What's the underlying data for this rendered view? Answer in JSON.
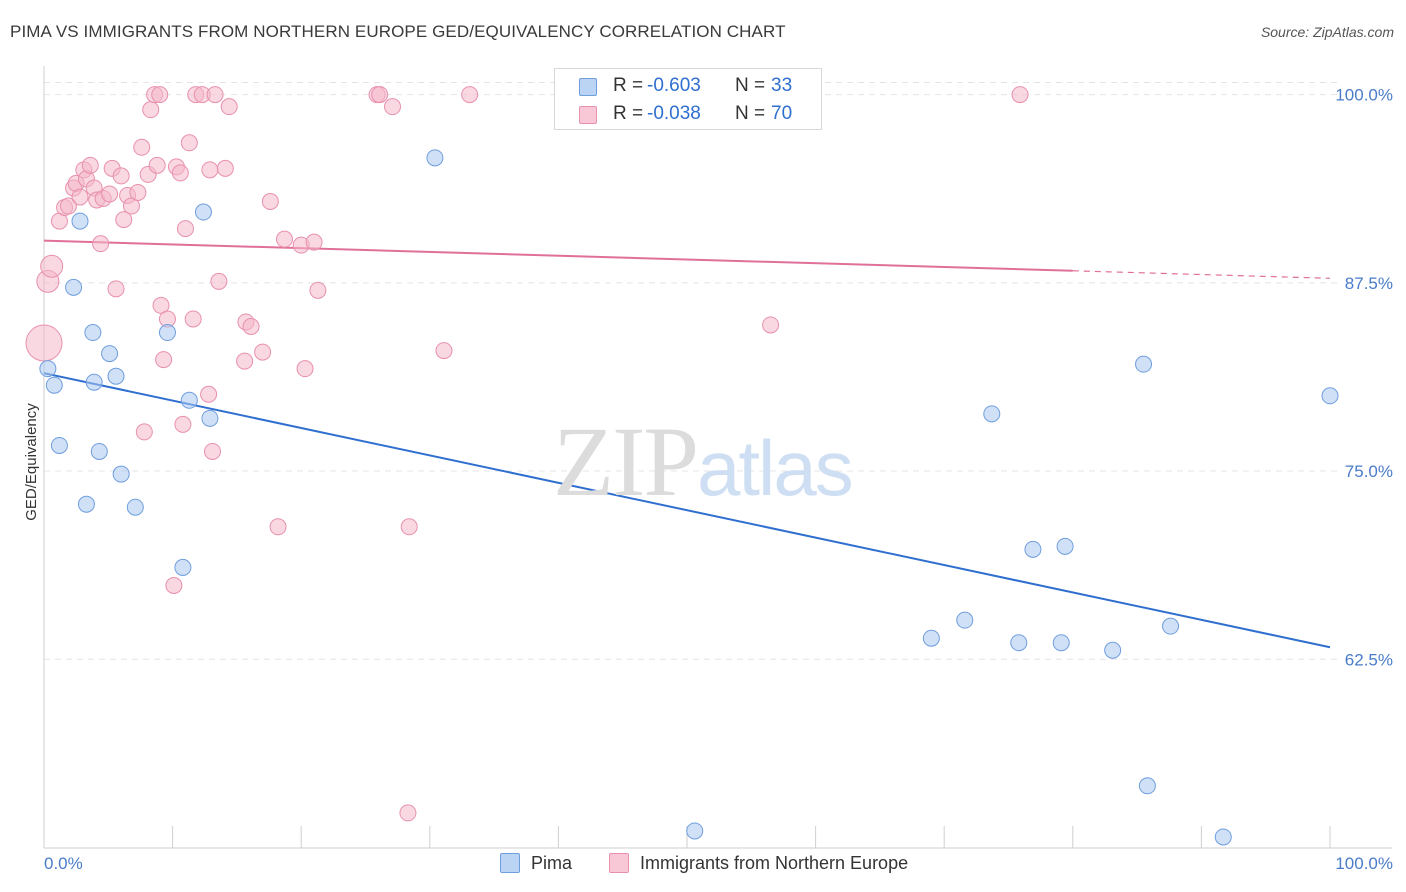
{
  "header": {
    "title": "PIMA VS IMMIGRANTS FROM NORTHERN EUROPE GED/EQUIVALENCY CORRELATION CHART",
    "source": "Source: ZipAtlas.com"
  },
  "watermark": {
    "part1": "ZIP",
    "part2": "atlas"
  },
  "colors": {
    "pima_fill": "#a9c7f0",
    "pima_stroke": "#6f9ede",
    "pima_line": "#2f6fcf",
    "ne_fill": "#f4b8cb",
    "ne_stroke": "#e890ad",
    "ne_line": "#e07099",
    "tick_text": "#4a7cc9",
    "grid": "#e4e4e4"
  },
  "legend_top": [
    {
      "r_label": "R =",
      "r_value": "-0.603",
      "n_label": "N =",
      "n_value": "33"
    },
    {
      "r_label": "R =",
      "r_value": "-0.038",
      "n_label": "N =",
      "n_value": "70"
    }
  ],
  "legend_bottom": [
    {
      "label": "Pima"
    },
    {
      "label": "Immigrants from Northern Europe"
    }
  ],
  "chart_data": {
    "type": "scatter",
    "title": "PIMA VS IMMIGRANTS FROM NORTHERN EUROPE GED/EQUIVALENCY CORRELATION CHART",
    "xlabel": "",
    "ylabel": "GED/Equivalency",
    "xlim": [
      0,
      100
    ],
    "ylim": [
      50.5,
      101.5
    ],
    "x_tick_labels": [
      "0.0%",
      "100.0%"
    ],
    "y_ticks": [
      100.0,
      87.5,
      75.0,
      62.5
    ],
    "y_tick_labels": [
      "100.0%",
      "87.5%",
      "75.0%",
      "62.5%"
    ],
    "grid": true,
    "legend_position": "top-center",
    "series": [
      {
        "name": "Pima",
        "r": -0.603,
        "n": 33,
        "trend": {
          "x": [
            0,
            100
          ],
          "y": [
            81.5,
            63.3
          ]
        },
        "points": [
          {
            "x": 0.3,
            "y": 81.8
          },
          {
            "x": 0.8,
            "y": 80.7
          },
          {
            "x": 1.2,
            "y": 76.7
          },
          {
            "x": 2.3,
            "y": 87.2
          },
          {
            "x": 2.8,
            "y": 91.6
          },
          {
            "x": 3.3,
            "y": 72.8
          },
          {
            "x": 3.8,
            "y": 84.2
          },
          {
            "x": 3.9,
            "y": 80.9
          },
          {
            "x": 4.3,
            "y": 76.3
          },
          {
            "x": 5.1,
            "y": 82.8
          },
          {
            "x": 5.6,
            "y": 81.3
          },
          {
            "x": 6.0,
            "y": 74.8
          },
          {
            "x": 7.1,
            "y": 72.6
          },
          {
            "x": 9.6,
            "y": 84.2
          },
          {
            "x": 10.8,
            "y": 68.6
          },
          {
            "x": 11.3,
            "y": 79.7
          },
          {
            "x": 12.4,
            "y": 92.2
          },
          {
            "x": 12.9,
            "y": 78.5
          },
          {
            "x": 30.4,
            "y": 95.8
          },
          {
            "x": 50.6,
            "y": 51.1
          },
          {
            "x": 69.0,
            "y": 63.9
          },
          {
            "x": 71.6,
            "y": 65.1
          },
          {
            "x": 73.7,
            "y": 78.8
          },
          {
            "x": 75.8,
            "y": 63.6
          },
          {
            "x": 76.9,
            "y": 69.8
          },
          {
            "x": 79.1,
            "y": 63.6
          },
          {
            "x": 79.4,
            "y": 70.0
          },
          {
            "x": 83.1,
            "y": 63.1
          },
          {
            "x": 85.5,
            "y": 82.1
          },
          {
            "x": 85.8,
            "y": 54.1
          },
          {
            "x": 87.6,
            "y": 64.7
          },
          {
            "x": 91.7,
            "y": 50.7
          },
          {
            "x": 100.0,
            "y": 80.0
          }
        ]
      },
      {
        "name": "Immigrants from Northern Europe",
        "r": -0.038,
        "n": 70,
        "trend": {
          "x": [
            0,
            80.0,
            100
          ],
          "y": [
            90.3,
            88.3,
            87.8
          ],
          "solid_until_x": 80.0
        },
        "points": [
          {
            "x": 0.0,
            "y": 83.5
          },
          {
            "x": 0.3,
            "y": 87.6
          },
          {
            "x": 0.6,
            "y": 88.6
          },
          {
            "x": 1.2,
            "y": 91.6
          },
          {
            "x": 1.6,
            "y": 92.5
          },
          {
            "x": 1.9,
            "y": 92.6
          },
          {
            "x": 2.3,
            "y": 93.8
          },
          {
            "x": 2.5,
            "y": 94.1
          },
          {
            "x": 2.8,
            "y": 93.2
          },
          {
            "x": 3.1,
            "y": 95.0
          },
          {
            "x": 3.3,
            "y": 94.4
          },
          {
            "x": 3.6,
            "y": 95.3
          },
          {
            "x": 3.9,
            "y": 93.8
          },
          {
            "x": 4.1,
            "y": 93.0
          },
          {
            "x": 4.4,
            "y": 90.1
          },
          {
            "x": 4.6,
            "y": 93.1
          },
          {
            "x": 5.1,
            "y": 93.4
          },
          {
            "x": 5.3,
            "y": 95.1
          },
          {
            "x": 5.6,
            "y": 87.1
          },
          {
            "x": 6.0,
            "y": 94.6
          },
          {
            "x": 6.2,
            "y": 91.7
          },
          {
            "x": 6.5,
            "y": 93.3
          },
          {
            "x": 6.8,
            "y": 92.6
          },
          {
            "x": 7.3,
            "y": 93.5
          },
          {
            "x": 7.6,
            "y": 96.5
          },
          {
            "x": 7.8,
            "y": 77.6
          },
          {
            "x": 8.1,
            "y": 94.7
          },
          {
            "x": 8.3,
            "y": 99.0
          },
          {
            "x": 8.8,
            "y": 95.3
          },
          {
            "x": 8.6,
            "y": 100.0
          },
          {
            "x": 9.0,
            "y": 100.0
          },
          {
            "x": 9.1,
            "y": 86.0
          },
          {
            "x": 9.3,
            "y": 82.4
          },
          {
            "x": 9.6,
            "y": 85.1
          },
          {
            "x": 10.1,
            "y": 67.4
          },
          {
            "x": 10.3,
            "y": 95.2
          },
          {
            "x": 10.6,
            "y": 94.8
          },
          {
            "x": 10.8,
            "y": 78.1
          },
          {
            "x": 11.0,
            "y": 91.1
          },
          {
            "x": 11.3,
            "y": 96.8
          },
          {
            "x": 11.6,
            "y": 85.1
          },
          {
            "x": 11.8,
            "y": 100.0
          },
          {
            "x": 12.3,
            "y": 100.0
          },
          {
            "x": 12.9,
            "y": 95.0
          },
          {
            "x": 12.8,
            "y": 80.1
          },
          {
            "x": 13.1,
            "y": 76.3
          },
          {
            "x": 13.3,
            "y": 100.0
          },
          {
            "x": 13.6,
            "y": 87.6
          },
          {
            "x": 14.1,
            "y": 95.1
          },
          {
            "x": 14.4,
            "y": 99.2
          },
          {
            "x": 15.7,
            "y": 84.9
          },
          {
            "x": 15.6,
            "y": 82.3
          },
          {
            "x": 16.1,
            "y": 84.6
          },
          {
            "x": 17.0,
            "y": 82.9
          },
          {
            "x": 17.6,
            "y": 92.9
          },
          {
            "x": 18.2,
            "y": 71.3
          },
          {
            "x": 18.7,
            "y": 90.4
          },
          {
            "x": 20.0,
            "y": 90.0
          },
          {
            "x": 20.3,
            "y": 81.8
          },
          {
            "x": 21.0,
            "y": 90.2
          },
          {
            "x": 21.3,
            "y": 87.0
          },
          {
            "x": 25.9,
            "y": 100.0
          },
          {
            "x": 26.1,
            "y": 100.0
          },
          {
            "x": 27.1,
            "y": 99.2
          },
          {
            "x": 28.4,
            "y": 71.3
          },
          {
            "x": 28.3,
            "y": 52.3
          },
          {
            "x": 31.1,
            "y": 83.0
          },
          {
            "x": 33.1,
            "y": 100.0
          },
          {
            "x": 56.5,
            "y": 84.7
          },
          {
            "x": 75.9,
            "y": 100.0
          }
        ]
      }
    ]
  }
}
